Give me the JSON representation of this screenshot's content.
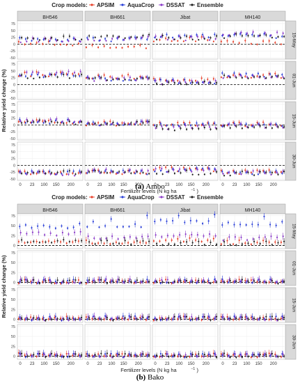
{
  "legend": {
    "title": "Crop models:",
    "items": [
      {
        "name": "APSIM",
        "color": "#e8402a"
      },
      {
        "name": "AquaCrop",
        "color": "#2a3fd9"
      },
      {
        "name": "DSSAT",
        "color": "#8a3ac8"
      },
      {
        "name": "Ensemble",
        "color": "#222222"
      }
    ]
  },
  "captions": {
    "a_letter": "(a)",
    "a_text": "Ambo",
    "b_letter": "(b)",
    "b_text": "Bako"
  },
  "chart_data": [
    {
      "type": "scatter",
      "title": "",
      "site": "Ambo",
      "ylabel": "Relative yield change (%)",
      "xlabel": "Fertilizer levels (N kg ha",
      "xlabel_sup": "−1",
      "xlabel_end": ")",
      "varieties": [
        "BH546",
        "BH661",
        "Jibat",
        "MH140"
      ],
      "dates": [
        "15-May",
        "01-Jun",
        "15-Jun",
        "30-Jun"
      ],
      "x_ticks": [
        0,
        23,
        100,
        150,
        200
      ],
      "x_ticks_labels": [
        "0",
        "23",
        "100",
        "150",
        "200"
      ],
      "y_ticks": [
        -50,
        -25,
        0,
        25,
        50,
        75
      ],
      "ylim": [
        -55,
        85
      ],
      "reference_line": 0,
      "grid": true,
      "legend_position": "top",
      "baseline": [
        [
          [
            2,
            18,
            15,
            22
          ],
          [
            -8,
            18,
            20,
            30
          ],
          [
            18,
            30,
            22,
            24
          ],
          [
            5,
            30,
            38,
            30
          ]
        ],
        [
          [
            38,
            32,
            40,
            30
          ],
          [
            28,
            22,
            20,
            22
          ],
          [
            15,
            10,
            8,
            4
          ],
          [
            32,
            36,
            30,
            28
          ]
        ],
        [
          [
            10,
            12,
            14,
            10
          ],
          [
            5,
            6,
            6,
            5
          ],
          [
            2,
            0,
            -8,
            -14
          ],
          [
            2,
            -2,
            -4,
            -8
          ]
        ],
        [
          [
            -28,
            -28,
            -30,
            -28
          ],
          [
            -26,
            -25,
            -22,
            -24
          ],
          [
            -14,
            -16,
            -20,
            -26
          ],
          [
            -24,
            -28,
            -26,
            -30
          ]
        ]
      ]
    },
    {
      "type": "scatter",
      "title": "",
      "site": "Bako",
      "ylabel": "Relative yield change (%)",
      "xlabel": "Fertilizer levels (N kg ha",
      "xlabel_sup": "−1",
      "xlabel_end": ")",
      "varieties": [
        "BH546",
        "BH661",
        "Jibat",
        "MH140"
      ],
      "dates": [
        "15-May",
        "01-Jun",
        "15-Jun",
        "30-Jun"
      ],
      "x_ticks": [
        0,
        23,
        100,
        150,
        200
      ],
      "x_ticks_labels": [
        "0",
        "23",
        "100",
        "150",
        "200"
      ],
      "y_ticks": [
        0,
        25,
        50,
        75
      ],
      "ylim": [
        -8,
        80
      ],
      "reference_line": 0,
      "grid": true,
      "legend_position": "top",
      "baseline": [
        [
          [
            10,
            22,
            30,
            12
          ],
          [
            8,
            26,
            20,
            8
          ],
          [
            14,
            34,
            24,
            6
          ],
          [
            8,
            26,
            18,
            6
          ]
        ],
        [
          [
            2,
            2,
            3,
            2
          ],
          [
            2,
            2,
            3,
            2
          ],
          [
            2,
            3,
            3,
            3
          ],
          [
            2,
            3,
            3,
            2
          ]
        ],
        [
          [
            2,
            2,
            2,
            2
          ],
          [
            2,
            4,
            3,
            2
          ],
          [
            2,
            2,
            3,
            2
          ],
          [
            2,
            3,
            2,
            2
          ]
        ],
        [
          [
            3,
            2,
            2,
            2
          ],
          [
            3,
            2,
            2,
            2
          ],
          [
            2,
            2,
            2,
            2
          ],
          [
            2,
            2,
            2,
            2
          ]
        ]
      ]
    }
  ]
}
